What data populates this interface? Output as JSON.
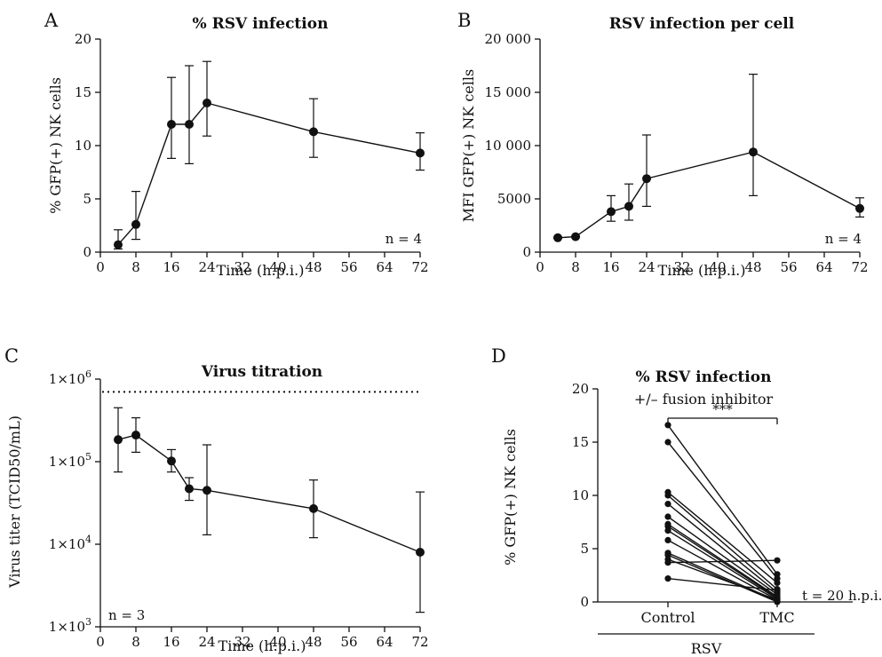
{
  "chart_data": [
    {
      "panel": "A",
      "type": "line",
      "title": "% RSV infection",
      "xlabel": "Time (h.p.i.)",
      "ylabel": "% GFP(+) NK cells",
      "xlim": [
        0,
        72
      ],
      "ylim": [
        0,
        20
      ],
      "xticks": [
        0,
        8,
        16,
        24,
        32,
        40,
        48,
        56,
        64,
        72
      ],
      "yticks": [
        0,
        5,
        10,
        15,
        20
      ],
      "annotation": "n = 4",
      "points": [
        {
          "x": 4,
          "y": 0.7,
          "lo": 0.3,
          "hi": 2.1
        },
        {
          "x": 8,
          "y": 2.6,
          "lo": 1.2,
          "hi": 5.7
        },
        {
          "x": 16,
          "y": 12.0,
          "lo": 8.8,
          "hi": 16.4
        },
        {
          "x": 20,
          "y": 12.0,
          "lo": 8.3,
          "hi": 17.5
        },
        {
          "x": 24,
          "y": 14.0,
          "lo": 10.9,
          "hi": 17.9
        },
        {
          "x": 48,
          "y": 11.3,
          "lo": 8.9,
          "hi": 14.4
        },
        {
          "x": 72,
          "y": 9.3,
          "lo": 7.7,
          "hi": 11.2
        }
      ]
    },
    {
      "panel": "B",
      "type": "line",
      "title": "RSV infection per cell",
      "xlabel": "Time (h.p.i.)",
      "ylabel": "MFI GFP(+) NK cells",
      "xlim": [
        0,
        72
      ],
      "ylim": [
        0,
        20000
      ],
      "xticks": [
        0,
        8,
        16,
        24,
        32,
        40,
        48,
        56,
        64,
        72
      ],
      "yticks": [
        0,
        5000,
        10000,
        15000,
        20000
      ],
      "ytick_labels": [
        "0",
        "5000",
        "10 000",
        "15 000",
        "20 000"
      ],
      "annotation": "n = 4",
      "points": [
        {
          "x": 4,
          "y": 1350,
          "lo": 1300,
          "hi": 1400
        },
        {
          "x": 8,
          "y": 1450,
          "lo": 1400,
          "hi": 1500
        },
        {
          "x": 16,
          "y": 3800,
          "lo": 2900,
          "hi": 5300
        },
        {
          "x": 20,
          "y": 4300,
          "lo": 3000,
          "hi": 6400
        },
        {
          "x": 24,
          "y": 6900,
          "lo": 4300,
          "hi": 11000
        },
        {
          "x": 48,
          "y": 9400,
          "lo": 5300,
          "hi": 16700
        },
        {
          "x": 72,
          "y": 4100,
          "lo": 3300,
          "hi": 5100
        }
      ]
    },
    {
      "panel": "C",
      "type": "line",
      "title": "Virus titration",
      "xlabel": "Time (h.p.i.)",
      "ylabel": "Virus titer (TCID50/mL)",
      "xlim": [
        0,
        72
      ],
      "ylim": [
        1000,
        1000000
      ],
      "yscale": "log",
      "xticks": [
        0,
        8,
        16,
        24,
        32,
        40,
        48,
        56,
        64,
        72
      ],
      "yticks": [
        1000,
        10000,
        100000,
        1000000
      ],
      "ytick_mantissa": "1×10",
      "ytick_exponents": [
        "3",
        "4",
        "5",
        "6"
      ],
      "annotation": "n = 3",
      "reference_line": 700000,
      "points": [
        {
          "x": 4,
          "y": 185000,
          "lo": 75000,
          "hi": 450000
        },
        {
          "x": 8,
          "y": 210000,
          "lo": 130000,
          "hi": 340000
        },
        {
          "x": 16,
          "y": 102000,
          "lo": 75000,
          "hi": 140000
        },
        {
          "x": 20,
          "y": 47000,
          "lo": 34000,
          "hi": 64000
        },
        {
          "x": 24,
          "y": 45000,
          "lo": 13000,
          "hi": 160000
        },
        {
          "x": 48,
          "y": 27000,
          "lo": 12000,
          "hi": 60000
        },
        {
          "x": 72,
          "y": 8000,
          "lo": 1500,
          "hi": 43000
        }
      ]
    },
    {
      "panel": "D",
      "type": "scatter",
      "title": "% RSV infection",
      "subtitle": "+/– fusion inhibitor",
      "ylabel": "% GFP(+) NK cells",
      "ylim": [
        0,
        20
      ],
      "yticks": [
        0,
        5,
        10,
        15,
        20
      ],
      "categories": [
        "Control",
        "TMC"
      ],
      "group_label": "RSV",
      "significance": "***",
      "annotation": "t = 20 h.p.i.",
      "pairs": [
        [
          16.6,
          2.6
        ],
        [
          15.0,
          2.2
        ],
        [
          10.3,
          1.8
        ],
        [
          10.0,
          1.2
        ],
        [
          9.2,
          0.9
        ],
        [
          8.0,
          0.7
        ],
        [
          7.3,
          0.5
        ],
        [
          7.1,
          0.4
        ],
        [
          6.7,
          0.3
        ],
        [
          5.8,
          0.2
        ],
        [
          4.6,
          0.1
        ],
        [
          4.4,
          0.0
        ],
        [
          4.0,
          0.2
        ],
        [
          3.7,
          3.9
        ],
        [
          2.2,
          1.1
        ]
      ]
    }
  ],
  "panels": {
    "a": {
      "letter": "A"
    },
    "b": {
      "letter": "B"
    },
    "c": {
      "letter": "C"
    },
    "d": {
      "letter": "D"
    }
  }
}
